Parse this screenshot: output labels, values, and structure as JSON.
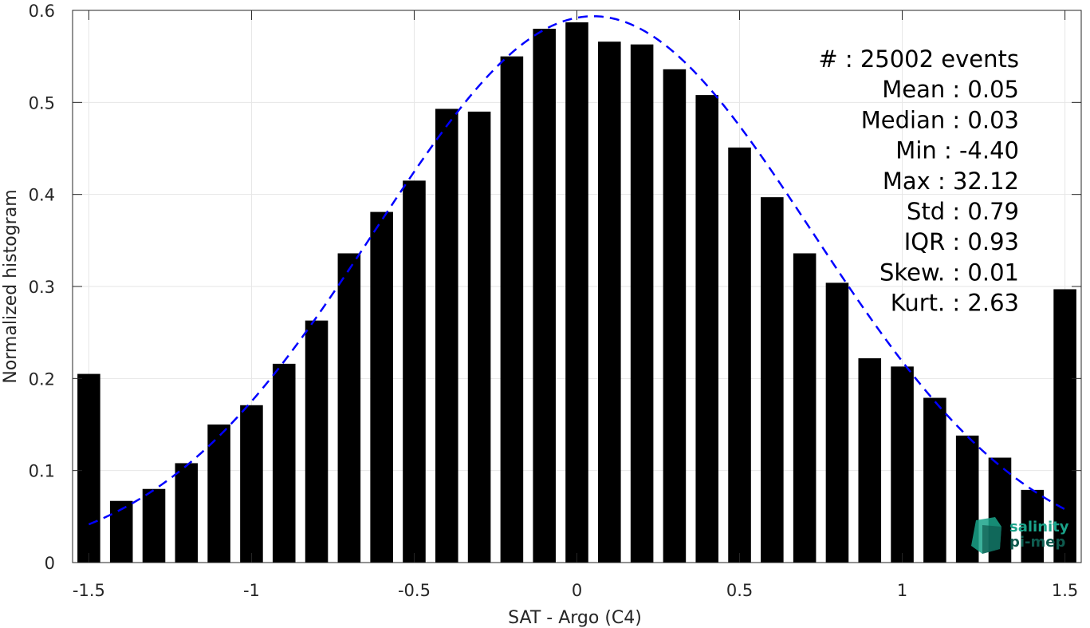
{
  "chart_data": {
    "type": "bar",
    "xlabel": "SAT - Argo (C4)",
    "ylabel": "Normalized histogram",
    "xlim": [
      -1.55,
      1.55
    ],
    "ylim": [
      0,
      0.6
    ],
    "grid": true,
    "x_ticks": [
      -1.5,
      -1,
      -0.5,
      0,
      0.5,
      1,
      1.5
    ],
    "x_tick_labels": [
      "-1.5",
      "-1",
      "-0.5",
      "0",
      "0.5",
      "1",
      "1.5"
    ],
    "y_ticks": [
      0,
      0.1,
      0.2,
      0.3,
      0.4,
      0.5,
      0.6
    ],
    "y_tick_labels": [
      "0",
      "0.1",
      "0.2",
      "0.3",
      "0.4",
      "0.5",
      "0.6"
    ],
    "bin_width": 0.1,
    "bar_color": "#000000",
    "fit_color": "#0000ff",
    "bins": [
      {
        "x": -1.5,
        "y": 0.205
      },
      {
        "x": -1.4,
        "y": 0.067
      },
      {
        "x": -1.3,
        "y": 0.08
      },
      {
        "x": -1.2,
        "y": 0.108
      },
      {
        "x": -1.1,
        "y": 0.15
      },
      {
        "x": -1.0,
        "y": 0.171
      },
      {
        "x": -0.9,
        "y": 0.216
      },
      {
        "x": -0.8,
        "y": 0.263
      },
      {
        "x": -0.7,
        "y": 0.336
      },
      {
        "x": -0.6,
        "y": 0.381
      },
      {
        "x": -0.5,
        "y": 0.415
      },
      {
        "x": -0.4,
        "y": 0.493
      },
      {
        "x": -0.3,
        "y": 0.49
      },
      {
        "x": -0.2,
        "y": 0.55
      },
      {
        "x": -0.1,
        "y": 0.58
      },
      {
        "x": 0.0,
        "y": 0.587
      },
      {
        "x": 0.1,
        "y": 0.566
      },
      {
        "x": 0.2,
        "y": 0.563
      },
      {
        "x": 0.3,
        "y": 0.536
      },
      {
        "x": 0.4,
        "y": 0.508
      },
      {
        "x": 0.5,
        "y": 0.451
      },
      {
        "x": 0.6,
        "y": 0.397
      },
      {
        "x": 0.7,
        "y": 0.336
      },
      {
        "x": 0.8,
        "y": 0.304
      },
      {
        "x": 0.9,
        "y": 0.222
      },
      {
        "x": 1.0,
        "y": 0.213
      },
      {
        "x": 1.1,
        "y": 0.179
      },
      {
        "x": 1.2,
        "y": 0.138
      },
      {
        "x": 1.3,
        "y": 0.114
      },
      {
        "x": 1.4,
        "y": 0.079
      },
      {
        "x": 1.5,
        "y": 0.297
      }
    ],
    "fit": {
      "type": "gaussian",
      "mean": 0.05,
      "std": 0.672,
      "x_range": [
        -1.5,
        1.5
      ]
    },
    "stats": [
      {
        "label": "#  : 25002 events"
      },
      {
        "label": "Mean : 0.05"
      },
      {
        "label": "Median : 0.03"
      },
      {
        "label": "Min : -4.40"
      },
      {
        "label": "Max : 32.12"
      },
      {
        "label": "Std : 0.79"
      },
      {
        "label": "IQR : 0.93"
      },
      {
        "label": "Skew. : 0.01"
      },
      {
        "label": "Kurt. : 2.63"
      }
    ]
  },
  "logo": {
    "line1": "salinity",
    "line2": "pi-mep",
    "color1": "#1aa38a",
    "color2": "#0e5a4e"
  }
}
